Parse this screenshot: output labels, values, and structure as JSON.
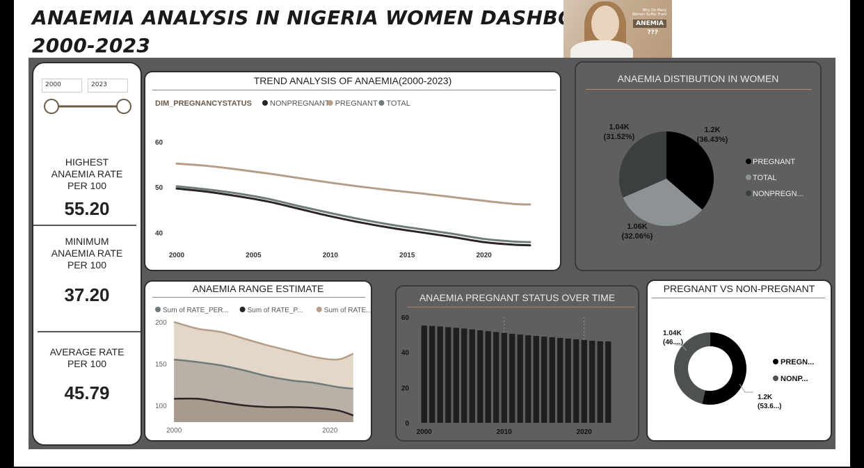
{
  "header": {
    "title_line1": "ANAEMIA ANALYSIS IN NIGERIA WOMEN DASHBOARD",
    "title_line2": "2000-2023",
    "image": {
      "small_text": "Why Do Many Women Suffer From",
      "tag": "ANEMIA",
      "marks": "???"
    }
  },
  "slicer": {
    "start": "2000",
    "end": "2023",
    "start_frac": 0,
    "end_frac": 1
  },
  "kpis": [
    {
      "label": [
        "HIGHEST",
        "ANAEMIA RATE",
        "PER 100"
      ],
      "value": "55.20"
    },
    {
      "label": [
        "MINIMUM",
        "ANAEMIA RATE",
        "PER 100"
      ],
      "value": "37.20"
    },
    {
      "label": [
        "AVERAGE RATE",
        "PER 100"
      ],
      "value": "45.79"
    }
  ],
  "colors": {
    "nonpregnant": "#2b2326",
    "pregnant": "#b49e88",
    "total": "#6f7b7b",
    "pie_pregnant": "#000000",
    "pie_total": "#8d9394",
    "pie_nonpregnant": "#3b3f40"
  },
  "chart_data": [
    {
      "id": "trend",
      "type": "line",
      "title": "TREND ANALYSIS OF ANAEMIA(2000-2023)",
      "legend_title": "DIM_PREGNANCYSTATUS",
      "legend_position": "top-left",
      "x": [
        2000,
        2002,
        2004,
        2006,
        2008,
        2010,
        2012,
        2014,
        2016,
        2018,
        2020,
        2022,
        2023
      ],
      "xticks": [
        "2000",
        "2005",
        "2010",
        "2015",
        "2020"
      ],
      "yticks": [
        "40",
        "50",
        "60"
      ],
      "ylim": [
        37,
        60
      ],
      "xlim": [
        2000,
        2023
      ],
      "series": [
        {
          "name": "NONPREGNANT",
          "values": [
            49.7,
            49.0,
            48.0,
            46.8,
            45.2,
            43.6,
            42.2,
            41.0,
            40.0,
            39.0,
            37.9,
            37.3,
            37.2
          ]
        },
        {
          "name": "PREGNANT",
          "values": [
            55.2,
            54.7,
            53.9,
            53.0,
            52.0,
            51.0,
            50.1,
            49.3,
            48.6,
            47.8,
            47.0,
            46.3,
            46.2
          ]
        },
        {
          "name": "TOTAL",
          "values": [
            50.2,
            49.5,
            48.6,
            47.4,
            45.8,
            44.3,
            42.9,
            41.7,
            40.7,
            39.7,
            38.6,
            38.0,
            37.9
          ]
        }
      ]
    },
    {
      "id": "distribution",
      "type": "pie",
      "title": "ANAEMIA DISTIBUTION IN WOMEN",
      "legend_position": "right",
      "slices": [
        {
          "name": "PREGNANT",
          "value": 1.2,
          "label": "1.2K",
          "pct": "(36.43%)"
        },
        {
          "name": "TOTAL",
          "value": 1.06,
          "label": "1.06K",
          "pct": "(32.06%)"
        },
        {
          "name": "NONPREGN...",
          "value": 1.04,
          "label": "1.04K",
          "pct": "(31.52%)"
        }
      ]
    },
    {
      "id": "range",
      "type": "area",
      "title": "ANAEMIA RANGE ESTIMATE",
      "legend_position": "top-left",
      "x": [
        2000,
        2003,
        2006,
        2009,
        2012,
        2015,
        2018,
        2021,
        2023
      ],
      "xticks": [
        "2000",
        "2020"
      ],
      "yticks": [
        "100",
        "150",
        "200"
      ],
      "ylim": [
        80,
        210
      ],
      "xlim": [
        1999,
        2024
      ],
      "series": [
        {
          "name": "Sum of RATE_PER...",
          "values": [
            155,
            152,
            148,
            142,
            135,
            130,
            127,
            122,
            120
          ]
        },
        {
          "name": "Sum of RATE_P...",
          "values": [
            108,
            108,
            104,
            100,
            98,
            98,
            97,
            94,
            88
          ]
        },
        {
          "name": "Sum of RATE...",
          "values": [
            200,
            192,
            188,
            180,
            172,
            165,
            158,
            155,
            162
          ]
        }
      ]
    },
    {
      "id": "pregnant_over_time",
      "type": "bar",
      "title": "ANAEMIA PREGNANT STATUS OVER TIME",
      "categories": [
        2000,
        2001,
        2002,
        2003,
        2004,
        2005,
        2006,
        2007,
        2008,
        2009,
        2010,
        2011,
        2012,
        2013,
        2014,
        2015,
        2016,
        2017,
        2018,
        2019,
        2020,
        2021,
        2022,
        2023
      ],
      "values": [
        55.2,
        55.0,
        54.7,
        54.3,
        53.9,
        53.5,
        53.0,
        52.5,
        52.0,
        51.5,
        51.0,
        50.5,
        50.1,
        49.7,
        49.3,
        48.9,
        48.6,
        48.2,
        47.8,
        47.4,
        47.0,
        46.6,
        46.3,
        46.2
      ],
      "xticks": [
        "2000",
        "2010",
        "2020"
      ],
      "yticks": [
        "0",
        "20",
        "40",
        "60"
      ],
      "ylim": [
        0,
        60
      ]
    },
    {
      "id": "preg_vs_non",
      "type": "pie",
      "title": "PREGNANT VS NON-PREGNANT",
      "legend_position": "right",
      "slices": [
        {
          "name": "PREGN...",
          "value": 1.2,
          "label": "1.2K",
          "pct": "(53.6...)"
        },
        {
          "name": "NONP...",
          "value": 1.04,
          "label": "1.04K",
          "pct": "(46....)"
        }
      ]
    }
  ]
}
